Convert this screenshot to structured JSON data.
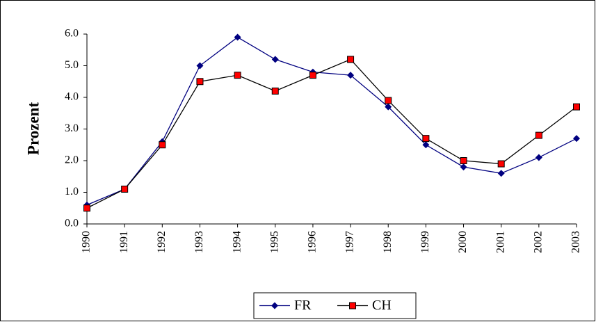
{
  "chart_data": {
    "type": "line",
    "y_label": "Prozent",
    "categories": [
      "1990",
      "1991",
      "1992",
      "1993",
      "1994",
      "1995",
      "1996",
      "1997",
      "1998",
      "1999",
      "2000",
      "2001",
      "2002",
      "2003"
    ],
    "series": [
      {
        "name": "FR",
        "color": "#000080",
        "marker": "diamond",
        "values": [
          0.6,
          1.1,
          2.6,
          5.0,
          5.9,
          5.2,
          4.8,
          4.7,
          3.7,
          2.5,
          1.8,
          1.6,
          2.1,
          2.7
        ]
      },
      {
        "name": "CH",
        "color": "#000000",
        "marker": "square",
        "marker_color": "#ff0000",
        "values": [
          0.5,
          1.1,
          2.5,
          4.5,
          4.7,
          4.2,
          4.7,
          5.2,
          3.9,
          2.7,
          2.0,
          1.9,
          2.8,
          3.7
        ]
      }
    ],
    "ylim": [
      0,
      6
    ],
    "yticks": [
      {
        "value": 0,
        "label": "0.0"
      },
      {
        "value": 1,
        "label": "1.0"
      },
      {
        "value": 2,
        "label": "2.0"
      },
      {
        "value": 3,
        "label": "3.0"
      },
      {
        "value": 4,
        "label": "4.0"
      },
      {
        "value": 5,
        "label": "5.0"
      },
      {
        "value": 6,
        "label": "6.0"
      }
    ],
    "grid": false,
    "legend": "bottom"
  }
}
